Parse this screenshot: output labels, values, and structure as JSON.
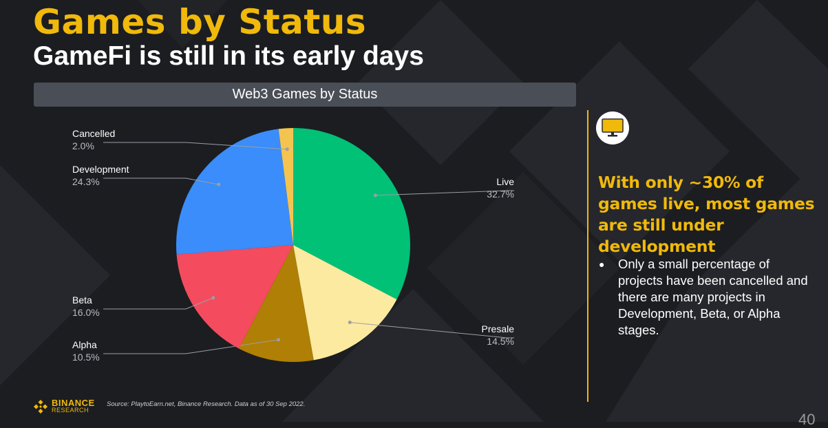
{
  "slide": {
    "title": "Games by Status",
    "subtitle": "GameFi is still in its early days",
    "chart_header": "Web3 Games by Status",
    "highlight": "With only ~30% of games live, most games are still under development",
    "bullets": [
      "Only a small percentage of projects have been cancelled and there are many projects in Development, Beta, or Alpha stages."
    ],
    "source": "Source: PlaytoEarn.net, Binance Research. Data as of 30 Sep 2022.",
    "logo": {
      "word": "BINANCE",
      "sub": "RESEARCH"
    },
    "page_number": "40",
    "icon": "monitor-icon"
  },
  "colors": {
    "accent": "#f0b90b",
    "background": "#1c1d21"
  },
  "chart_data": {
    "type": "pie",
    "title": "Web3 Games by Status",
    "slices": [
      {
        "label": "Live",
        "value": 32.7,
        "display": "32.7%",
        "color": "#00c176"
      },
      {
        "label": "Presale",
        "value": 14.5,
        "display": "14.5%",
        "color": "#fbeaa0"
      },
      {
        "label": "Alpha",
        "value": 10.5,
        "display": "10.5%",
        "color": "#b07f05"
      },
      {
        "label": "Beta",
        "value": 16.0,
        "display": "16.0%",
        "color": "#f54b5e"
      },
      {
        "label": "Development",
        "value": 24.3,
        "display": "24.3%",
        "color": "#3a8dfa"
      },
      {
        "label": "Cancelled",
        "value": 2.0,
        "display": "2.0%",
        "color": "#f4c451"
      }
    ]
  }
}
